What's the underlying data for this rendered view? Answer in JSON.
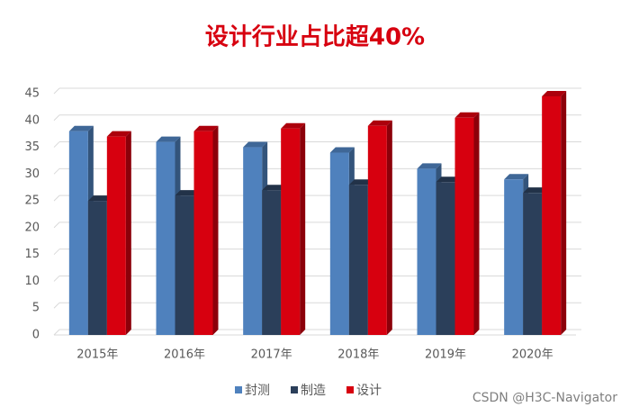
{
  "chart_data": {
    "type": "bar",
    "title": "设计行业占比超40%",
    "categories": [
      "2015年",
      "2016年",
      "2017年",
      "2018年",
      "2019年",
      "2020年"
    ],
    "series": [
      {
        "name": "封测",
        "color": "#4f81bd",
        "values": [
          38,
          36,
          35,
          34,
          31,
          29
        ]
      },
      {
        "name": "制造",
        "color": "#2b3f5a",
        "values": [
          25,
          26,
          27,
          28,
          28.5,
          26.5
        ]
      },
      {
        "name": "设计",
        "color": "#d7000f",
        "values": [
          37,
          38,
          38.5,
          39,
          40.5,
          44.5
        ]
      }
    ],
    "ylim": [
      0,
      45
    ],
    "yticks": [
      0,
      5,
      10,
      15,
      20,
      25,
      30,
      35,
      40,
      45
    ],
    "grid": true,
    "legend": "bottom",
    "watermark": "CSDN @H3C-Navigator"
  }
}
